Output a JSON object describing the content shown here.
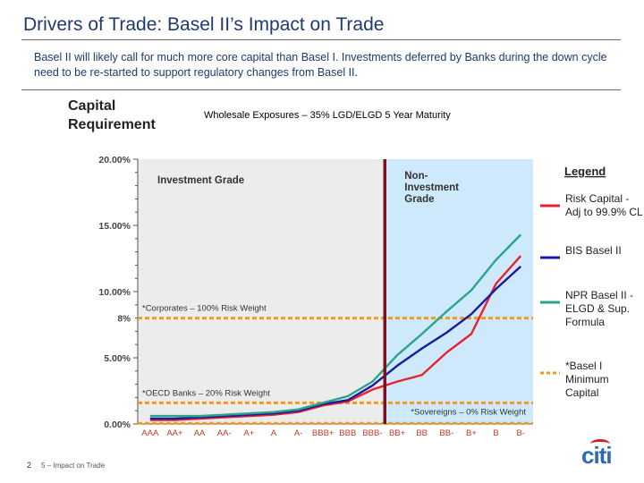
{
  "header": {
    "title": "Drivers of Trade: Basel II’s Impact on Trade",
    "subtitle": "Basel II will likely call for much more core capital than Basel I.  Investments deferred by Banks during the down cycle need to be re-started to support regulatory changes from Basel II."
  },
  "chart_data": {
    "type": "line",
    "title": "Wholesale Exposures – 35% LGD/ELGD 5 Year Maturity",
    "ylabel": "Capital Requirement",
    "xlabel": "",
    "ylim": [
      0,
      20
    ],
    "yticks": [
      "0.00%",
      "5.00%",
      "10.00%",
      "15.00%",
      "20.00%"
    ],
    "categories": [
      "AAA",
      "AA+",
      "AA",
      "AA-",
      "A+",
      "A",
      "A-",
      "BBB+",
      "BBB",
      "BBB-",
      "BB+",
      "BB",
      "BB-",
      "B+",
      "B",
      "B-"
    ],
    "series": [
      {
        "name": "Risk Capital - Adj to 99.9% CL",
        "color": "#e8222b",
        "values": [
          0.3,
          0.3,
          0.4,
          0.5,
          0.6,
          0.7,
          0.9,
          1.4,
          1.7,
          2.6,
          3.2,
          3.7,
          5.4,
          6.8,
          10.6,
          12.7
        ]
      },
      {
        "name": "BIS Basel II",
        "color": "#1a1aa0",
        "values": [
          0.4,
          0.4,
          0.5,
          0.6,
          0.7,
          0.8,
          1.0,
          1.5,
          1.8,
          2.9,
          4.4,
          5.7,
          6.9,
          8.3,
          10.2,
          11.9
        ]
      },
      {
        "name": "NPR Basel II - ELGD & Sup. Formula",
        "color": "#2aa58a",
        "values": [
          0.6,
          0.6,
          0.6,
          0.7,
          0.8,
          0.9,
          1.1,
          1.6,
          2.1,
          3.2,
          5.2,
          6.8,
          8.5,
          10.1,
          12.4,
          14.3
        ]
      }
    ],
    "reference_lines": [
      {
        "label": "*Corporates – 100% Risk Weight",
        "value": 8,
        "tick_label": "8%"
      },
      {
        "label": "*OECD Banks – 20% Risk Weight",
        "value": 1.6
      },
      {
        "label": "*Sovereigns – 0% Risk Weight",
        "value": 0.05
      }
    ],
    "regions": {
      "left": "Investment Grade",
      "right": "Non-Investment Grade"
    },
    "legend": {
      "title": "Legend",
      "position": "right",
      "entries": [
        {
          "label": "Risk Capital - Adj to 99.9% CL",
          "color": "#e8222b",
          "style": "solid"
        },
        {
          "label": "BIS Basel II",
          "color": "#1a1aa0",
          "style": "solid"
        },
        {
          "label": "NPR Basel II - ELGD & Sup. Formula",
          "color": "#2aa58a",
          "style": "solid"
        },
        {
          "label": "*Basel I Minimum Capital",
          "color": "#f39a1e",
          "style": "dashed"
        }
      ]
    },
    "grid": false
  },
  "footer": {
    "page": "2",
    "text": "5 – Impact on Trade",
    "logo": "citi"
  }
}
